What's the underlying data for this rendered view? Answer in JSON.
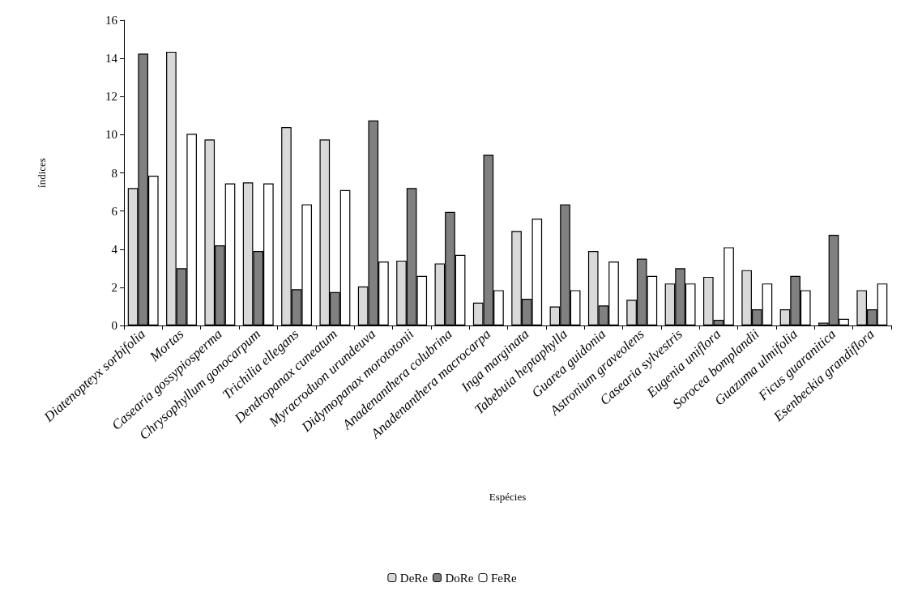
{
  "chart_data": {
    "type": "bar",
    "xlabel": "Espécies",
    "ylabel": "índices",
    "categories": [
      "Diatenopteyx sorbifolia",
      "Mortas",
      "Casearia gossypiosperma",
      "Chrysophyllum gonocarpum",
      "Trichilia ellegans",
      "Dendropanax cuneatum",
      "Myracroduon urundeuva",
      "Didymopanax morototonii",
      "Anadenanthera colubrina",
      "Anadenanthera macrocarpa",
      "Inga marginata",
      "Tabebuia heptaphylla",
      "Guarea guidonia",
      "Astronium graveolens",
      "Casearia sylvestris",
      "Eugenia uniflora",
      "Sorocea bomplandii",
      "Guazuma ulmifolia",
      "Ficus guaranitica",
      "Esenbeckia grandiflora"
    ],
    "series": [
      {
        "name": "DeRe",
        "color": "#d9d9d9",
        "values": [
          7.2,
          14.35,
          9.75,
          7.5,
          10.4,
          9.75,
          2.05,
          3.4,
          3.25,
          1.2,
          4.95,
          1.0,
          3.9,
          1.35,
          2.2,
          2.55,
          2.9,
          0.85,
          0.15,
          1.85
        ]
      },
      {
        "name": "DoRe",
        "color": "#808080",
        "values": [
          14.25,
          3.0,
          4.2,
          3.9,
          1.9,
          1.75,
          10.75,
          7.2,
          5.95,
          8.95,
          1.4,
          6.35,
          1.05,
          3.5,
          3.0,
          0.3,
          0.85,
          2.6,
          4.75,
          0.85
        ]
      },
      {
        "name": "FeRe",
        "color": "#ffffff",
        "values": [
          7.85,
          10.05,
          7.45,
          7.45,
          6.35,
          7.1,
          3.35,
          2.6,
          3.7,
          1.85,
          5.6,
          1.85,
          3.35,
          2.6,
          2.2,
          4.1,
          2.2,
          1.85,
          0.35,
          2.2
        ]
      }
    ],
    "ylim": [
      0,
      16
    ],
    "yticks": [
      0,
      2,
      4,
      6,
      8,
      10,
      12,
      14,
      16
    ],
    "grid": false,
    "legend": "bottom"
  }
}
